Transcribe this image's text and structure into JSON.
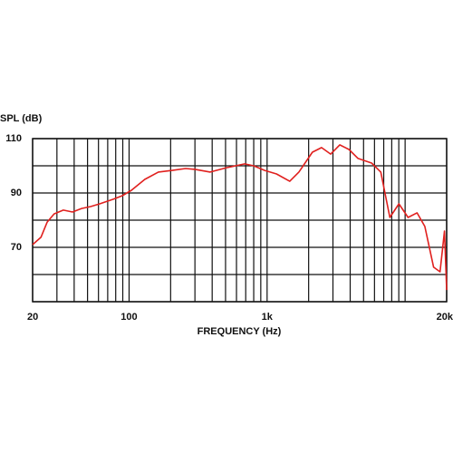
{
  "chart_data": {
    "type": "line",
    "x_label": "FREQUENCY (Hz)",
    "y_label": "SPL (dB)",
    "x": [
      20,
      23,
      25.5,
      28.6,
      33.4,
      38.9,
      45.3,
      52.6,
      61.2,
      76.8,
      89.3,
      104,
      130,
      163,
      205,
      257,
      300,
      387,
      508,
      687,
      800,
      962,
      1170,
      1460,
      1700,
      2130,
      2480,
      2890,
      3360,
      3920,
      4560,
      5720,
      6660,
      7750,
      9020,
      10500,
      12200,
      13900,
      16100,
      17900,
      19300,
      20000
    ],
    "series": [
      {
        "name": "SPL",
        "color": "#e0201e",
        "values": [
          71,
          73.7,
          79.3,
          82.3,
          83.7,
          83,
          84.3,
          85,
          86,
          87.7,
          89,
          91,
          95,
          97.7,
          98.3,
          99,
          98.7,
          97.7,
          99.3,
          100.7,
          100,
          98.3,
          97,
          94.3,
          97.7,
          105,
          106.7,
          104.3,
          107.7,
          106,
          102.7,
          101,
          97.7,
          81,
          86,
          81,
          82.7,
          77.7,
          62.7,
          61,
          76,
          54.3
        ]
      }
    ],
    "xlim": [
      20,
      20000
    ],
    "x_log": true,
    "xticks": [
      20,
      100,
      {
        "value": 1000,
        "label": "1k"
      },
      {
        "value": 20000,
        "label": "20k"
      }
    ],
    "xgrid": [
      20,
      30,
      40,
      50,
      60,
      70,
      80,
      90,
      100,
      200,
      300,
      400,
      500,
      600,
      700,
      800,
      900,
      1000,
      2000,
      3000,
      4000,
      5000,
      6000,
      7000,
      8000,
      9000,
      10000,
      20000
    ],
    "ylim": [
      50,
      110
    ],
    "yticks": [
      70,
      90,
      110
    ],
    "ygrid": [
      50,
      60,
      70,
      80,
      90,
      100,
      110
    ]
  }
}
